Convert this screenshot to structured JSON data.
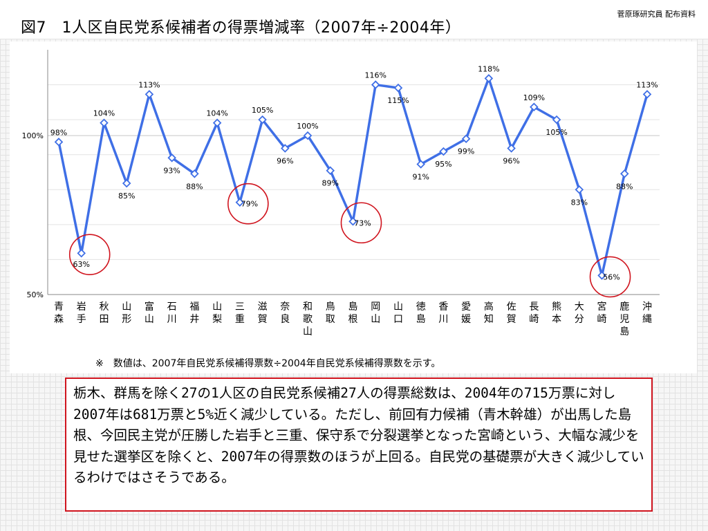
{
  "header": {
    "title": "図7　1人区自民党系候補者の得票増減率（2007年÷2004年）",
    "credit": "菅原琢研究員 配布資料"
  },
  "note": "※　数値は、2007年自民党系候補得票数÷2004年自民党系候補得票数を示す。",
  "summary": "栃木、群馬を除く27の1人区の自民党系候補27人の得票総数は、2004年の715万票に対し2007年は681万票と5%近く減少している。ただし、前回有力候補（青木幹雄）が出馬した島根、今回民主党が圧勝した岩手と三重、保守系で分裂選挙となった宮崎という、大幅な減少を見せた選挙区を除くと、2007年の得票数のほうが上回る。自民党の基礎票が大きく減少しているわけではさそうである。",
  "colors": {
    "line": "#3f6fe6",
    "circle": "#d0141e",
    "axis": "#888888"
  },
  "chart_data": {
    "type": "line",
    "title": "1人区自民党系候補者の得票増減率（2007年÷2004年）",
    "categories": [
      "青森",
      "岩手",
      "秋田",
      "山形",
      "富山",
      "石川",
      "福井",
      "山梨",
      "三重",
      "滋賀",
      "奈良",
      "和歌山",
      "鳥取",
      "島根",
      "岡山",
      "山口",
      "徳島",
      "香川",
      "愛媛",
      "高知",
      "佐賀",
      "長崎",
      "熊本",
      "大分",
      "宮崎",
      "鹿児島",
      "沖縄"
    ],
    "series": [
      {
        "values": [
          98,
          63,
          104,
          85,
          113,
          93,
          88,
          104,
          79,
          105,
          96,
          100,
          89,
          73,
          116,
          115,
          91,
          95,
          99,
          118,
          96,
          109,
          105,
          83,
          56,
          88,
          113
        ]
      }
    ],
    "data_labels": [
      "98%",
      "63%",
      "104%",
      "85%",
      "113%",
      "93%",
      "88%",
      "104%",
      "79%",
      "105%",
      "96%",
      "100%",
      "89%",
      "73%",
      "116%",
      "115%",
      "91%",
      "95%",
      "99%",
      "118%",
      "96%",
      "109%",
      "105%",
      "83%",
      "56%",
      "88%",
      "113%"
    ],
    "y_ticks": [
      {
        "value": 100,
        "label": "100%"
      },
      {
        "value": 50,
        "label": "50%"
      }
    ],
    "ylim": [
      50,
      127
    ],
    "highlighted": [
      "岩手",
      "三重",
      "島根",
      "宮崎"
    ],
    "grid": true,
    "legend": "none"
  }
}
